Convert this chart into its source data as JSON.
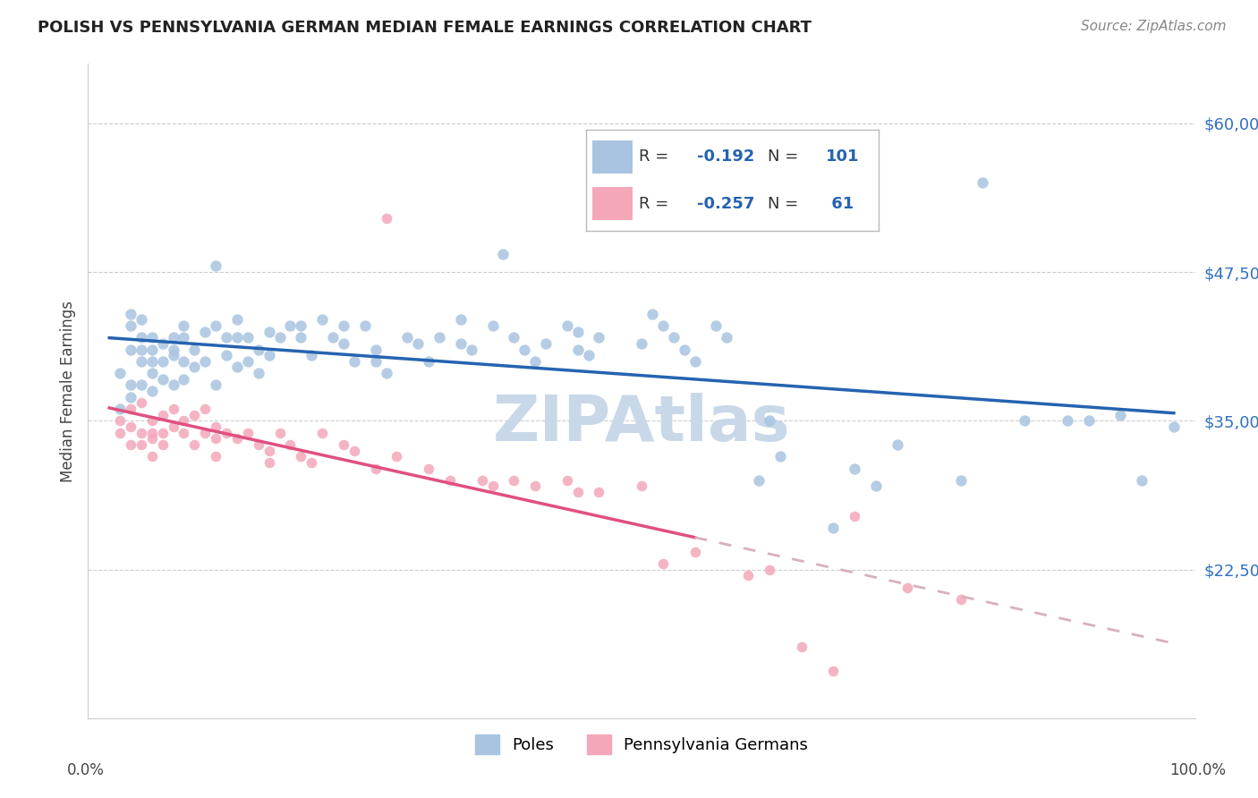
{
  "title": "POLISH VS PENNSYLVANIA GERMAN MEDIAN FEMALE EARNINGS CORRELATION CHART",
  "source": "Source: ZipAtlas.com",
  "ylabel": "Median Female Earnings",
  "y_ticks": [
    22500,
    35000,
    47500,
    60000
  ],
  "y_tick_labels": [
    "$22,500",
    "$35,000",
    "$47,500",
    "$60,000"
  ],
  "y_min": 10000,
  "y_max": 65000,
  "x_min": -0.02,
  "x_max": 1.02,
  "poles_color": "#a8c4e0",
  "poles_line_color": "#2563b0",
  "penn_german_color": "#f4a7b9",
  "penn_german_line_color": "#e05080",
  "penn_german_line_dash_color": "#d8b0bc",
  "watermark_color": "#c8d8e8",
  "legend_R1": "-0.192",
  "legend_N1": "101",
  "legend_R2": "-0.257",
  "legend_N2": "61",
  "poles_x": [
    0.01,
    0.01,
    0.02,
    0.02,
    0.02,
    0.02,
    0.02,
    0.03,
    0.03,
    0.03,
    0.03,
    0.03,
    0.04,
    0.04,
    0.04,
    0.04,
    0.04,
    0.05,
    0.05,
    0.05,
    0.06,
    0.06,
    0.06,
    0.06,
    0.07,
    0.07,
    0.07,
    0.07,
    0.08,
    0.08,
    0.09,
    0.09,
    0.1,
    0.1,
    0.1,
    0.11,
    0.11,
    0.12,
    0.12,
    0.12,
    0.13,
    0.13,
    0.14,
    0.14,
    0.15,
    0.15,
    0.16,
    0.17,
    0.18,
    0.18,
    0.19,
    0.2,
    0.21,
    0.22,
    0.22,
    0.23,
    0.24,
    0.25,
    0.25,
    0.26,
    0.28,
    0.29,
    0.3,
    0.31,
    0.33,
    0.33,
    0.34,
    0.36,
    0.37,
    0.38,
    0.39,
    0.4,
    0.41,
    0.43,
    0.44,
    0.44,
    0.45,
    0.46,
    0.5,
    0.51,
    0.52,
    0.53,
    0.54,
    0.55,
    0.57,
    0.58,
    0.61,
    0.62,
    0.63,
    0.68,
    0.7,
    0.72,
    0.74,
    0.8,
    0.82,
    0.86,
    0.9,
    0.92,
    0.95,
    0.97,
    1.0
  ],
  "poles_y": [
    36000,
    39000,
    41000,
    43000,
    44000,
    38000,
    37000,
    42000,
    43500,
    41000,
    40000,
    38000,
    42000,
    41000,
    40000,
    39000,
    37500,
    41500,
    40000,
    38500,
    42000,
    41000,
    40500,
    38000,
    43000,
    42000,
    40000,
    38500,
    41000,
    39500,
    42500,
    40000,
    48000,
    43000,
    38000,
    42000,
    40500,
    43500,
    42000,
    39500,
    42000,
    40000,
    41000,
    39000,
    42500,
    40500,
    42000,
    43000,
    43000,
    42000,
    40500,
    43500,
    42000,
    43000,
    41500,
    40000,
    43000,
    41000,
    40000,
    39000,
    42000,
    41500,
    40000,
    42000,
    43500,
    41500,
    41000,
    43000,
    49000,
    42000,
    41000,
    40000,
    41500,
    43000,
    42500,
    41000,
    40500,
    42000,
    41500,
    44000,
    43000,
    42000,
    41000,
    40000,
    43000,
    42000,
    30000,
    35000,
    32000,
    26000,
    31000,
    29500,
    33000,
    30000,
    55000,
    35000,
    35000,
    35000,
    35500,
    30000,
    34500
  ],
  "penn_x": [
    0.01,
    0.01,
    0.02,
    0.02,
    0.02,
    0.03,
    0.03,
    0.03,
    0.04,
    0.04,
    0.04,
    0.04,
    0.05,
    0.05,
    0.05,
    0.06,
    0.06,
    0.07,
    0.07,
    0.08,
    0.08,
    0.09,
    0.09,
    0.1,
    0.1,
    0.1,
    0.11,
    0.12,
    0.13,
    0.14,
    0.15,
    0.15,
    0.16,
    0.17,
    0.18,
    0.19,
    0.2,
    0.22,
    0.23,
    0.25,
    0.26,
    0.27,
    0.3,
    0.32,
    0.35,
    0.36,
    0.38,
    0.4,
    0.43,
    0.44,
    0.46,
    0.5,
    0.52,
    0.55,
    0.6,
    0.62,
    0.65,
    0.68,
    0.7,
    0.75,
    0.8
  ],
  "penn_y": [
    35000,
    34000,
    36000,
    34500,
    33000,
    36500,
    34000,
    33000,
    35000,
    34000,
    33500,
    32000,
    35500,
    34000,
    33000,
    36000,
    34500,
    35000,
    34000,
    35500,
    33000,
    36000,
    34000,
    34500,
    33500,
    32000,
    34000,
    33500,
    34000,
    33000,
    32500,
    31500,
    34000,
    33000,
    32000,
    31500,
    34000,
    33000,
    32500,
    31000,
    52000,
    32000,
    31000,
    30000,
    30000,
    29500,
    30000,
    29500,
    30000,
    29000,
    29000,
    29500,
    23000,
    24000,
    22000,
    22500,
    16000,
    14000,
    27000,
    21000,
    20000
  ]
}
